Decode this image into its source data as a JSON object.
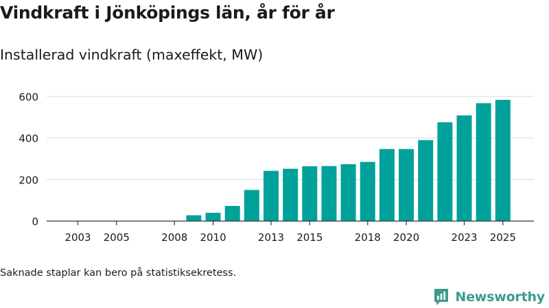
{
  "page": {
    "title": "Vindkraft i Jönköpings län, år för år",
    "subtitle": "Installerad vindkraft (maxeffekt, MW)",
    "footnote": "Saknade staplar kan bero på statistiksekretess.",
    "brand": "Newsworthy"
  },
  "colors": {
    "bar": "#00a19a",
    "grid": "#d9d9d9",
    "axis": "#333333",
    "text": "#1a1a1a",
    "brand": "#3e9a8e"
  },
  "chart_data": {
    "type": "bar",
    "title": "Vindkraft i Jönköpings län, år för år",
    "subtitle": "Installerad vindkraft (maxeffekt, MW)",
    "xlabel": "",
    "ylabel": "",
    "categories": [
      2003,
      2004,
      2005,
      2006,
      2007,
      2008,
      2009,
      2010,
      2011,
      2012,
      2013,
      2014,
      2015,
      2016,
      2017,
      2018,
      2019,
      2020,
      2021,
      2022,
      2023,
      2024,
      2025
    ],
    "values": [
      0,
      0,
      0,
      0,
      0,
      0,
      28,
      40,
      73,
      150,
      242,
      252,
      264,
      265,
      274,
      285,
      347,
      347,
      390,
      476,
      509,
      568,
      584
    ],
    "x_tick_labels": [
      "2003",
      "2005",
      "2008",
      "2010",
      "2013",
      "2015",
      "2018",
      "2020",
      "2023",
      "2025"
    ],
    "y_ticks": [
      0,
      200,
      400,
      600
    ],
    "ylim": [
      0,
      650
    ],
    "grid": true
  }
}
